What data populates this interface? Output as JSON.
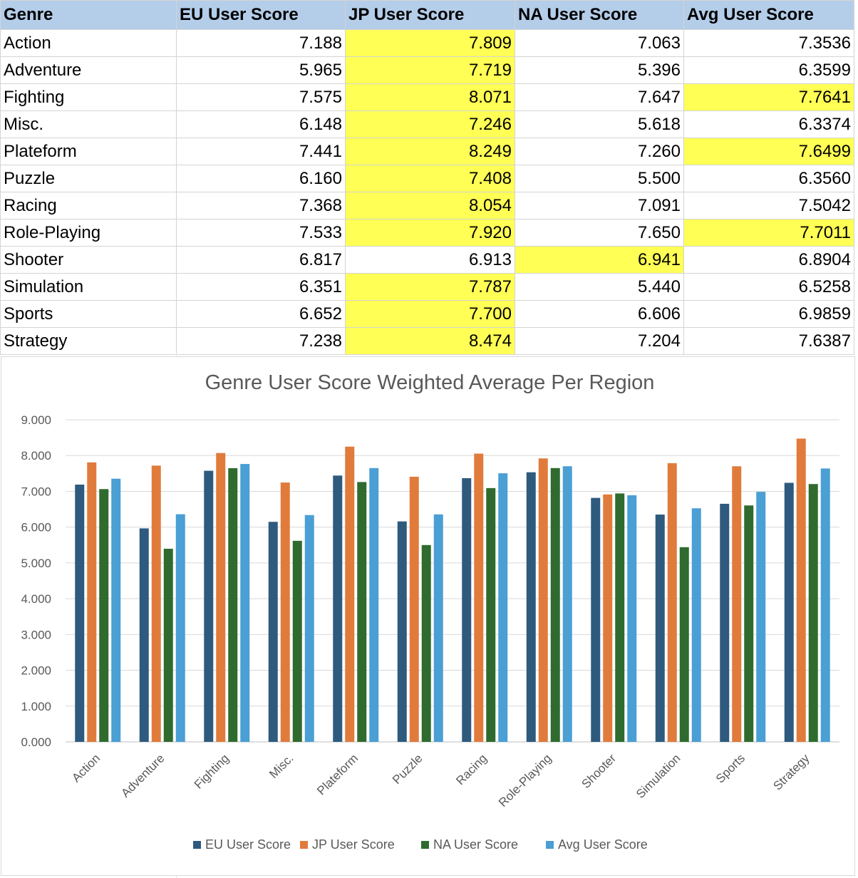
{
  "table": {
    "headers": [
      "Genre",
      "EU User Score",
      "JP User Score",
      "NA User Score",
      "Avg User Score"
    ],
    "highlight_color": "#ffff55",
    "header_color": "#b4cde9",
    "rows": [
      {
        "cells": [
          "Action",
          "7.188",
          "7.809",
          "7.063",
          "7.3536"
        ],
        "highlight": [
          2
        ]
      },
      {
        "cells": [
          "Adventure",
          "5.965",
          "7.719",
          "5.396",
          "6.3599"
        ],
        "highlight": [
          2
        ]
      },
      {
        "cells": [
          "Fighting",
          "7.575",
          "8.071",
          "7.647",
          "7.7641"
        ],
        "highlight": [
          2,
          4
        ]
      },
      {
        "cells": [
          "Misc.",
          "6.148",
          "7.246",
          "5.618",
          "6.3374"
        ],
        "highlight": [
          2
        ]
      },
      {
        "cells": [
          "Plateform",
          "7.441",
          "8.249",
          "7.260",
          "7.6499"
        ],
        "highlight": [
          2,
          4
        ]
      },
      {
        "cells": [
          "Puzzle",
          "6.160",
          "7.408",
          "5.500",
          "6.3560"
        ],
        "highlight": [
          2
        ]
      },
      {
        "cells": [
          "Racing",
          "7.368",
          "8.054",
          "7.091",
          "7.5042"
        ],
        "highlight": [
          2
        ]
      },
      {
        "cells": [
          "Role-Playing",
          "7.533",
          "7.920",
          "7.650",
          "7.7011"
        ],
        "highlight": [
          2,
          4
        ]
      },
      {
        "cells": [
          "Shooter",
          "6.817",
          "6.913",
          "6.941",
          "6.8904"
        ],
        "highlight": [
          3
        ]
      },
      {
        "cells": [
          "Simulation",
          "6.351",
          "7.787",
          "5.440",
          "6.5258"
        ],
        "highlight": [
          2
        ]
      },
      {
        "cells": [
          "Sports",
          "6.652",
          "7.700",
          "6.606",
          "6.9859"
        ],
        "highlight": [
          2
        ]
      },
      {
        "cells": [
          "Strategy",
          "7.238",
          "8.474",
          "7.204",
          "7.6387"
        ],
        "highlight": [
          2
        ]
      }
    ]
  },
  "chart_data": {
    "type": "bar",
    "title": "Genre User Score Weighted Average Per Region",
    "xlabel": "",
    "ylabel": "",
    "ylim": [
      0,
      9
    ],
    "yticks": [
      "0.000",
      "1.000",
      "2.000",
      "3.000",
      "4.000",
      "5.000",
      "6.000",
      "7.000",
      "8.000",
      "9.000"
    ],
    "grid": true,
    "legend_position": "bottom",
    "categories": [
      "Action",
      "Adventure",
      "Fighting",
      "Misc.",
      "Plateform",
      "Puzzle",
      "Racing",
      "Role-Playing",
      "Shooter",
      "Simulation",
      "Sports",
      "Strategy"
    ],
    "series": [
      {
        "name": "EU User Score",
        "color": "#2e5a7e",
        "values": [
          7.188,
          5.965,
          7.575,
          6.148,
          7.441,
          6.16,
          7.368,
          7.533,
          6.817,
          6.351,
          6.652,
          7.238
        ]
      },
      {
        "name": "JP User Score",
        "color": "#e07b3c",
        "values": [
          7.809,
          7.719,
          8.071,
          7.246,
          8.249,
          7.408,
          8.054,
          7.92,
          6.913,
          7.787,
          7.7,
          8.474
        ]
      },
      {
        "name": "NA User Score",
        "color": "#2f6b2f",
        "values": [
          7.063,
          5.396,
          7.647,
          5.618,
          7.26,
          5.5,
          7.091,
          7.65,
          6.941,
          5.44,
          6.606,
          7.204
        ]
      },
      {
        "name": "Avg User Score",
        "color": "#4a9fd4",
        "values": [
          7.3536,
          6.3599,
          7.7641,
          6.3374,
          7.6499,
          6.356,
          7.5042,
          7.7011,
          6.8904,
          6.5258,
          6.9859,
          7.6387
        ]
      }
    ]
  }
}
